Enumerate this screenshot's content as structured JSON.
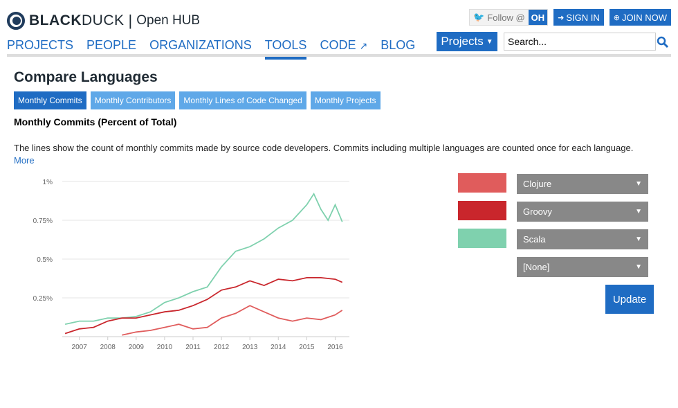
{
  "header": {
    "logo_black": "BLACK",
    "logo_duck": "DUCK",
    "logo_separator": "|",
    "logo_hub": "Open HUB",
    "follow_label": "Follow @",
    "follow_badge": "OH",
    "sign_in": "SIGN IN",
    "join_now": "JOIN NOW"
  },
  "nav": {
    "items": [
      "PROJECTS",
      "PEOPLE",
      "ORGANIZATIONS",
      "TOOLS",
      "CODE",
      "BLOG"
    ],
    "active": "TOOLS"
  },
  "search": {
    "projects_label": "Projects",
    "placeholder": "Search..."
  },
  "page": {
    "title": "Compare Languages",
    "tabs": [
      "Monthly Commits",
      "Monthly Contributors",
      "Monthly Lines of Code Changed",
      "Monthly Projects"
    ],
    "active_tab": "Monthly Commits",
    "subtitle": "Monthly Commits (Percent of Total)",
    "description": "The lines show the count of monthly commits made by source code developers. Commits including multiple languages are counted once for each language.",
    "more_link": "More"
  },
  "languages": [
    {
      "name": "Clojure",
      "color": "#e05c5c"
    },
    {
      "name": "Groovy",
      "color": "#c9262c"
    },
    {
      "name": "Scala",
      "color": "#7fd1ae"
    },
    {
      "name": "[None]",
      "color": ""
    }
  ],
  "update_label": "Update",
  "colors": {
    "accent": "#1f6cc3",
    "tab_inactive": "#5fa8e8",
    "select_bg": "#888888"
  },
  "chart_data": {
    "type": "line",
    "x_tick_labels": [
      "2007",
      "2008",
      "2009",
      "2010",
      "2011",
      "2012",
      "2013",
      "2014",
      "2015",
      "2016"
    ],
    "y_tick_labels": [
      "1%",
      "0.75%",
      "0.5%",
      "0.25%"
    ],
    "ylim": [
      0,
      1.0
    ],
    "xlim": [
      2006.4,
      2016.5
    ],
    "grid": true,
    "series": [
      {
        "name": "Scala",
        "color": "#7fd1ae",
        "x": [
          2006.5,
          2007.0,
          2007.5,
          2008.0,
          2008.5,
          2009.0,
          2009.5,
          2010.0,
          2010.5,
          2011.0,
          2011.5,
          2012.0,
          2012.5,
          2013.0,
          2013.5,
          2014.0,
          2014.5,
          2015.0,
          2015.25,
          2015.5,
          2015.75,
          2016.0,
          2016.25
        ],
        "y": [
          0.08,
          0.1,
          0.1,
          0.12,
          0.12,
          0.13,
          0.16,
          0.22,
          0.25,
          0.29,
          0.32,
          0.45,
          0.55,
          0.58,
          0.63,
          0.7,
          0.75,
          0.85,
          0.92,
          0.82,
          0.75,
          0.85,
          0.74
        ]
      },
      {
        "name": "Groovy",
        "color": "#c9262c",
        "x": [
          2006.5,
          2007.0,
          2007.5,
          2008.0,
          2008.5,
          2009.0,
          2009.5,
          2010.0,
          2010.5,
          2011.0,
          2011.5,
          2012.0,
          2012.5,
          2013.0,
          2013.5,
          2014.0,
          2014.5,
          2015.0,
          2015.5,
          2016.0,
          2016.25
        ],
        "y": [
          0.02,
          0.05,
          0.06,
          0.1,
          0.12,
          0.12,
          0.14,
          0.16,
          0.17,
          0.2,
          0.24,
          0.3,
          0.32,
          0.36,
          0.33,
          0.37,
          0.36,
          0.38,
          0.38,
          0.37,
          0.35
        ]
      },
      {
        "name": "Clojure",
        "color": "#e05c5c",
        "x": [
          2008.5,
          2009.0,
          2009.5,
          2010.0,
          2010.5,
          2011.0,
          2011.5,
          2012.0,
          2012.5,
          2013.0,
          2013.5,
          2014.0,
          2014.5,
          2015.0,
          2015.5,
          2016.0,
          2016.25
        ],
        "y": [
          0.01,
          0.03,
          0.04,
          0.06,
          0.08,
          0.05,
          0.06,
          0.12,
          0.15,
          0.2,
          0.16,
          0.12,
          0.1,
          0.12,
          0.11,
          0.14,
          0.17
        ]
      }
    ]
  }
}
